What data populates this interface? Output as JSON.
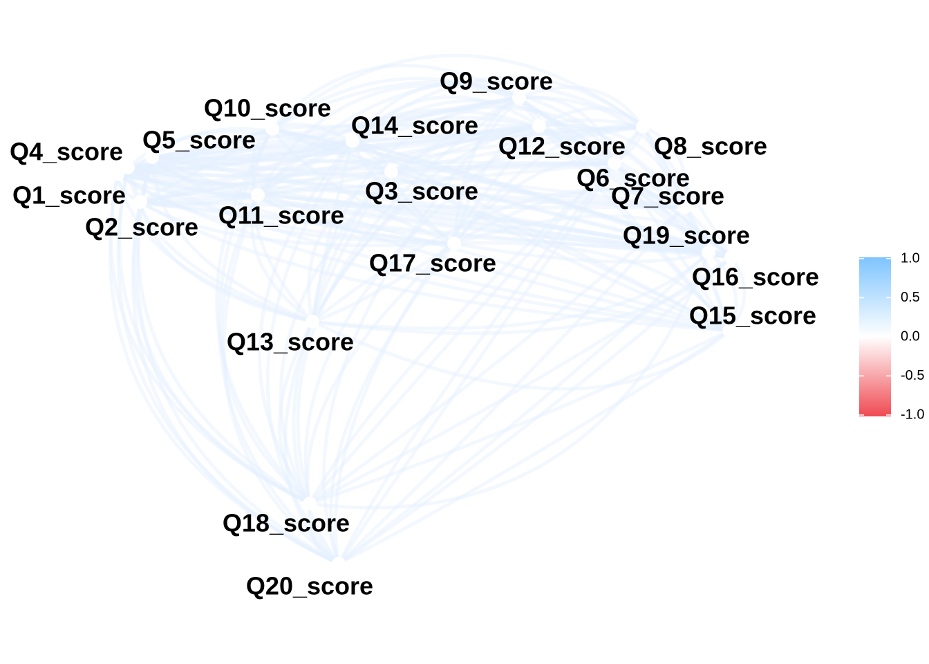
{
  "network": {
    "nodes": [
      {
        "id": "Q1",
        "label": "Q1_score"
      },
      {
        "id": "Q2",
        "label": "Q2_score"
      },
      {
        "id": "Q3",
        "label": "Q3_score"
      },
      {
        "id": "Q4",
        "label": "Q4_score"
      },
      {
        "id": "Q5",
        "label": "Q5_score"
      },
      {
        "id": "Q6",
        "label": "Q6_score"
      },
      {
        "id": "Q7",
        "label": "Q7_score"
      },
      {
        "id": "Q8",
        "label": "Q8_score"
      },
      {
        "id": "Q9",
        "label": "Q9_score"
      },
      {
        "id": "Q10",
        "label": "Q10_score"
      },
      {
        "id": "Q11",
        "label": "Q11_score"
      },
      {
        "id": "Q12",
        "label": "Q12_score"
      },
      {
        "id": "Q13",
        "label": "Q13_score"
      },
      {
        "id": "Q14",
        "label": "Q14_score"
      },
      {
        "id": "Q15",
        "label": "Q15_score"
      },
      {
        "id": "Q16",
        "label": "Q16_score"
      },
      {
        "id": "Q17",
        "label": "Q17_score"
      },
      {
        "id": "Q18",
        "label": "Q18_score"
      },
      {
        "id": "Q19",
        "label": "Q19_score"
      },
      {
        "id": "Q20",
        "label": "Q20_score"
      }
    ],
    "edge_color": "#e4f0ff",
    "edge_correlation": 0.1
  },
  "legend": {
    "ticks": [
      "1.0",
      "0.5",
      "0.0",
      "-0.5",
      "-1.0"
    ],
    "range": [
      -1.0,
      1.0
    ],
    "colors": {
      "high": "#7ec4ff",
      "mid": "#ffffff",
      "low": "#ef4a52"
    }
  }
}
